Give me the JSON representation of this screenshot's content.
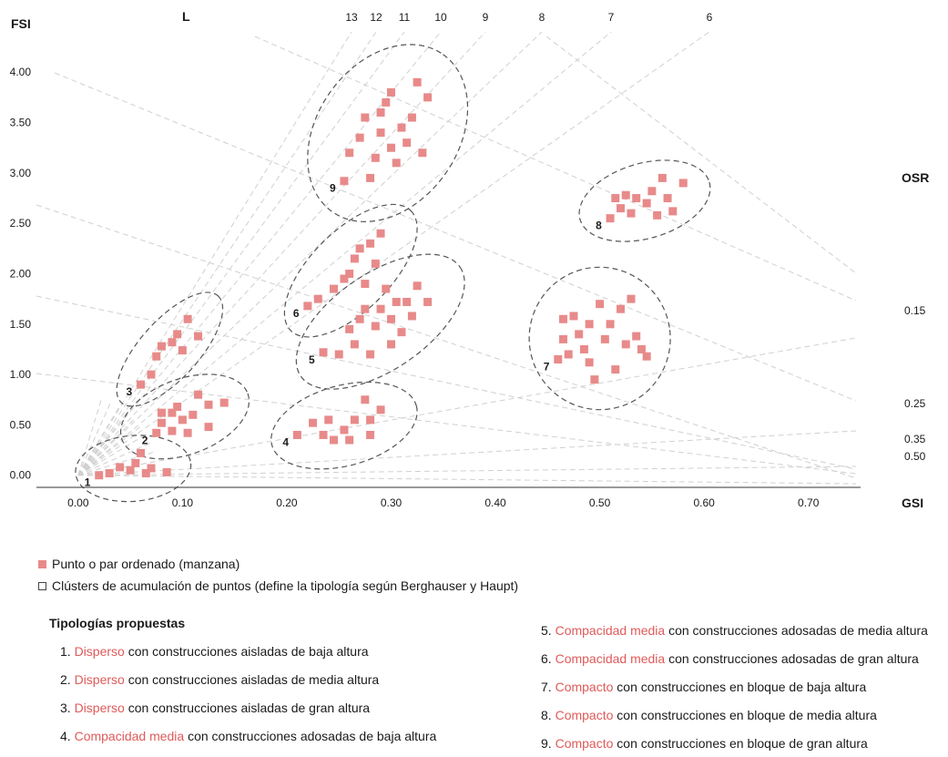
{
  "colors": {
    "point": "#e88a8a",
    "highlight": "#e05a5a",
    "grid": "#d0d0d0",
    "cluster": "#555555"
  },
  "chart_data": {
    "type": "scatter",
    "xlabel": "GSI",
    "ylabel": "FSI",
    "xlim": [
      -0.04,
      0.75
    ],
    "ylim": [
      -0.12,
      4.4
    ],
    "x_ticks": [
      "0.00",
      "0.10",
      "0.20",
      "0.30",
      "0.40",
      "0.50",
      "0.60",
      "0.70"
    ],
    "y_ticks": [
      "0.00",
      "0.50",
      "1.00",
      "1.50",
      "2.00",
      "2.50",
      "3.00",
      "3.50",
      "4.00"
    ],
    "grid": true,
    "L_label": "L",
    "L_values": [
      "13",
      "12",
      "11",
      "10",
      "9",
      "8",
      "7",
      "6"
    ],
    "osr_label": "OSR",
    "osr_values": [
      "0.15",
      "0.25",
      "0.35",
      "0.50"
    ],
    "clusters": [
      {
        "label": "1",
        "points": [
          [
            0.02,
            0.0
          ],
          [
            0.03,
            0.02
          ],
          [
            0.04,
            0.08
          ],
          [
            0.05,
            0.05
          ],
          [
            0.055,
            0.12
          ],
          [
            0.06,
            0.22
          ],
          [
            0.065,
            0.02
          ],
          [
            0.07,
            0.07
          ],
          [
            0.085,
            0.03
          ]
        ]
      },
      {
        "label": "2",
        "points": [
          [
            0.075,
            0.42
          ],
          [
            0.08,
            0.52
          ],
          [
            0.08,
            0.62
          ],
          [
            0.09,
            0.44
          ],
          [
            0.09,
            0.62
          ],
          [
            0.095,
            0.68
          ],
          [
            0.1,
            0.55
          ],
          [
            0.105,
            0.42
          ],
          [
            0.11,
            0.6
          ],
          [
            0.115,
            0.8
          ],
          [
            0.125,
            0.48
          ],
          [
            0.125,
            0.7
          ],
          [
            0.14,
            0.72
          ]
        ]
      },
      {
        "label": "3",
        "points": [
          [
            0.06,
            0.9
          ],
          [
            0.07,
            1.0
          ],
          [
            0.075,
            1.18
          ],
          [
            0.08,
            1.28
          ],
          [
            0.09,
            1.32
          ],
          [
            0.095,
            1.4
          ],
          [
            0.1,
            1.24
          ],
          [
            0.105,
            1.55
          ],
          [
            0.115,
            1.38
          ]
        ]
      },
      {
        "label": "4",
        "points": [
          [
            0.21,
            0.4
          ],
          [
            0.225,
            0.52
          ],
          [
            0.235,
            0.4
          ],
          [
            0.24,
            0.55
          ],
          [
            0.245,
            0.35
          ],
          [
            0.255,
            0.45
          ],
          [
            0.26,
            0.35
          ],
          [
            0.265,
            0.55
          ],
          [
            0.275,
            0.75
          ],
          [
            0.28,
            0.55
          ],
          [
            0.28,
            0.4
          ],
          [
            0.29,
            0.65
          ]
        ]
      },
      {
        "label": "5",
        "points": [
          [
            0.235,
            1.22
          ],
          [
            0.25,
            1.2
          ],
          [
            0.26,
            1.45
          ],
          [
            0.265,
            1.3
          ],
          [
            0.27,
            1.55
          ],
          [
            0.275,
            1.65
          ],
          [
            0.28,
            1.2
          ],
          [
            0.285,
            1.48
          ],
          [
            0.29,
            1.65
          ],
          [
            0.295,
            1.85
          ],
          [
            0.3,
            1.3
          ],
          [
            0.3,
            1.55
          ],
          [
            0.305,
            1.72
          ],
          [
            0.31,
            1.42
          ],
          [
            0.315,
            1.72
          ],
          [
            0.32,
            1.58
          ],
          [
            0.325,
            1.88
          ],
          [
            0.335,
            1.72
          ]
        ]
      },
      {
        "label": "6",
        "points": [
          [
            0.22,
            1.68
          ],
          [
            0.23,
            1.75
          ],
          [
            0.245,
            1.85
          ],
          [
            0.255,
            1.95
          ],
          [
            0.26,
            2.0
          ],
          [
            0.265,
            2.15
          ],
          [
            0.27,
            2.25
          ],
          [
            0.275,
            1.9
          ],
          [
            0.28,
            2.3
          ],
          [
            0.285,
            2.1
          ],
          [
            0.29,
            2.4
          ]
        ]
      },
      {
        "label": "7",
        "points": [
          [
            0.46,
            1.15
          ],
          [
            0.465,
            1.35
          ],
          [
            0.465,
            1.55
          ],
          [
            0.47,
            1.2
          ],
          [
            0.475,
            1.58
          ],
          [
            0.48,
            1.4
          ],
          [
            0.485,
            1.25
          ],
          [
            0.49,
            1.12
          ],
          [
            0.49,
            1.5
          ],
          [
            0.495,
            0.95
          ],
          [
            0.5,
            1.7
          ],
          [
            0.505,
            1.35
          ],
          [
            0.51,
            1.5
          ],
          [
            0.515,
            1.05
          ],
          [
            0.52,
            1.65
          ],
          [
            0.525,
            1.3
          ],
          [
            0.53,
            1.75
          ],
          [
            0.535,
            1.38
          ],
          [
            0.54,
            1.25
          ],
          [
            0.545,
            1.18
          ]
        ]
      },
      {
        "label": "8",
        "points": [
          [
            0.51,
            2.55
          ],
          [
            0.515,
            2.75
          ],
          [
            0.52,
            2.65
          ],
          [
            0.525,
            2.78
          ],
          [
            0.53,
            2.6
          ],
          [
            0.535,
            2.75
          ],
          [
            0.545,
            2.7
          ],
          [
            0.55,
            2.82
          ],
          [
            0.555,
            2.58
          ],
          [
            0.56,
            2.95
          ],
          [
            0.565,
            2.75
          ],
          [
            0.57,
            2.62
          ],
          [
            0.58,
            2.9
          ]
        ]
      },
      {
        "label": "9",
        "points": [
          [
            0.255,
            2.92
          ],
          [
            0.26,
            3.2
          ],
          [
            0.27,
            3.35
          ],
          [
            0.275,
            3.55
          ],
          [
            0.28,
            2.95
          ],
          [
            0.285,
            3.15
          ],
          [
            0.29,
            3.4
          ],
          [
            0.29,
            3.6
          ],
          [
            0.295,
            3.7
          ],
          [
            0.3,
            3.8
          ],
          [
            0.3,
            3.25
          ],
          [
            0.305,
            3.1
          ],
          [
            0.31,
            3.45
          ],
          [
            0.315,
            3.3
          ],
          [
            0.32,
            3.55
          ],
          [
            0.325,
            3.9
          ],
          [
            0.33,
            3.2
          ],
          [
            0.335,
            3.75
          ]
        ]
      }
    ]
  },
  "legend": {
    "point": "Punto o par ordenado (manzana)",
    "cluster": "Clústers de acumulación de puntos (define la tipología según Berghauser y Haupt)"
  },
  "typologies": {
    "title": "Tipologías propuestas",
    "left": [
      {
        "num": "1.",
        "kw": "Disperso",
        "rest": "con construcciones aisladas de baja altura"
      },
      {
        "num": "2.",
        "kw": "Disperso",
        "rest": "con construcciones aisladas de media altura"
      },
      {
        "num": "3.",
        "kw": "Disperso",
        "rest": "con construcciones aisladas de gran altura"
      },
      {
        "num": "4.",
        "kw": "Compacidad media",
        "rest": "con construcciones adosadas de baja altura"
      }
    ],
    "right": [
      {
        "num": "5.",
        "kw": "Compacidad media",
        "rest": "con construcciones adosadas de media altura"
      },
      {
        "num": "6.",
        "kw": "Compacidad media",
        "rest": "con construcciones adosadas de gran altura"
      },
      {
        "num": "7.",
        "kw": "Compacto",
        "rest": "con construcciones en bloque de baja altura"
      },
      {
        "num": "8.",
        "kw": "Compacto",
        "rest": "con construcciones en bloque de media altura"
      },
      {
        "num": "9.",
        "kw": "Compacto",
        "rest": "con construcciones en bloque de gran altura"
      }
    ]
  }
}
